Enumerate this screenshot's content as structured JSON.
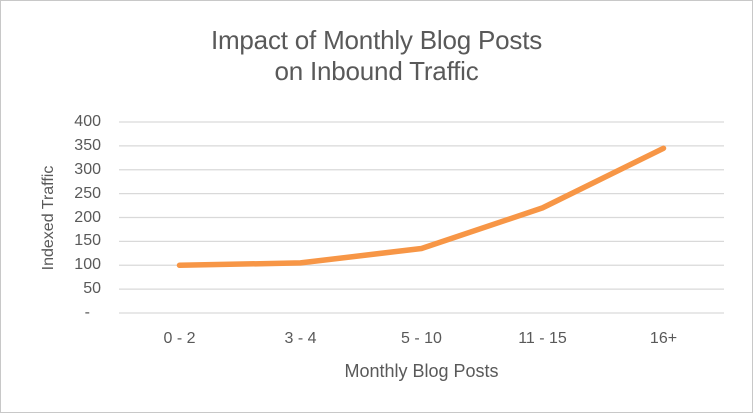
{
  "chart_data": {
    "type": "line",
    "title": "Impact of Monthly Blog Posts on Inbound Traffic",
    "title_line1": "Impact of Monthly Blog Posts",
    "title_line2": "on Inbound Traffic",
    "categories": [
      "0 - 2",
      "3 - 4",
      "5 - 10",
      "11 - 15",
      "16+"
    ],
    "values": [
      100,
      105,
      135,
      220,
      345
    ],
    "xlabel": "Monthly Blog Posts",
    "ylabel": "Indexed Traffic",
    "ylim": [
      0,
      400
    ],
    "ytick_step": 50,
    "ytick_labels": [
      "400",
      "350",
      "300",
      "250",
      "200",
      "150",
      "100",
      "50",
      "-"
    ],
    "grid": "horizontal",
    "legend": "none",
    "colors": {
      "line": "#F79646",
      "grid": "#D9D9D9",
      "text": "#595959",
      "border": "#C8C8C8",
      "background": "#FFFFFF"
    }
  }
}
